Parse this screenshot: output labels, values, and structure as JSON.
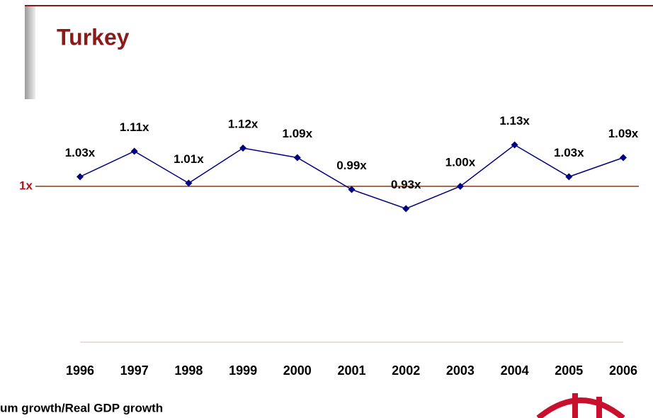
{
  "chart_data": {
    "type": "line",
    "title": "Turkey",
    "categories": [
      "1996",
      "1997",
      "1998",
      "1999",
      "2000",
      "2001",
      "2002",
      "2003",
      "2004",
      "2005",
      "2006"
    ],
    "series": [
      {
        "color": "#000080",
        "values": [
          1.03,
          1.11,
          1.01,
          1.12,
          1.09,
          0.99,
          0.93,
          1.0,
          1.13,
          1.03,
          1.09
        ],
        "value_labels": [
          "1.03x",
          "1.11x",
          "1.01x",
          "1.12x",
          "1.09x",
          "0.99x",
          "0.93x",
          "1.00x",
          "1.13x",
          "1.03x",
          "1.09x"
        ]
      }
    ],
    "reference_line": {
      "value": 1,
      "label": "1x",
      "color": "#8b3a1a"
    },
    "footnote": "um growth/Real GDP growth"
  }
}
